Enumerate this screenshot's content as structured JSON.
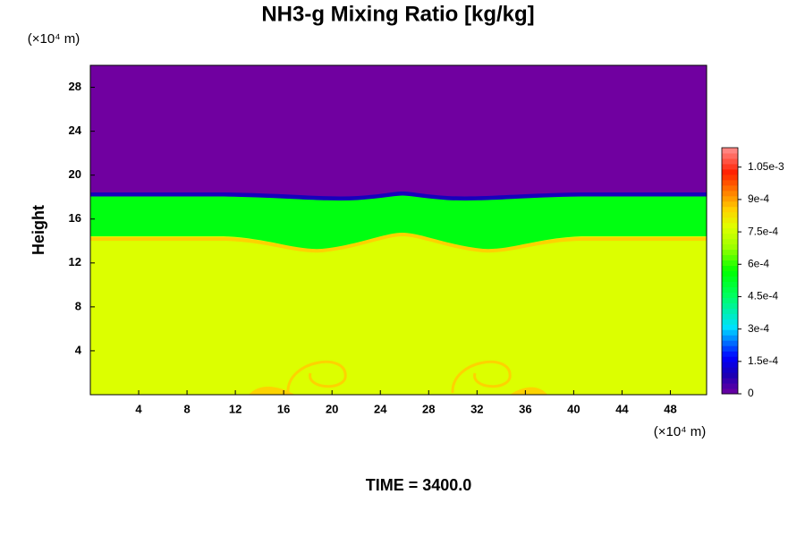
{
  "chart_data": {
    "type": "contour",
    "title": "NH3-g Mixing Ratio [kg/kg]",
    "y_label": "Height",
    "x_unit": "(×10⁴ m)",
    "y_unit": "(×10⁴ m)",
    "annotation": "TIME = 3400.0",
    "xlim": [
      0,
      51
    ],
    "xticks": [
      4,
      8,
      12,
      16,
      20,
      24,
      28,
      32,
      36,
      40,
      44,
      48
    ],
    "ylim": [
      0,
      30
    ],
    "yticks": [
      4,
      8,
      12,
      16,
      20,
      24,
      28
    ],
    "clim": [
      0,
      0.00114
    ],
    "cticks": [
      0,
      {
        "value": 0.00015,
        "label": "1.5e-4"
      },
      {
        "value": 0.0003,
        "label": "3e-4"
      },
      {
        "value": 0.00045,
        "label": "4.5e-4"
      },
      {
        "value": 0.0006,
        "label": "6e-4"
      },
      {
        "value": 0.00075,
        "label": "7.5e-4"
      },
      {
        "value": 0.0009,
        "label": "9e-4"
      },
      {
        "value": 0.00105,
        "label": "1.05e-3"
      }
    ],
    "field_levels": [
      0,
      0.0001,
      0.00055,
      0.00077,
      0.00085
    ]
  }
}
